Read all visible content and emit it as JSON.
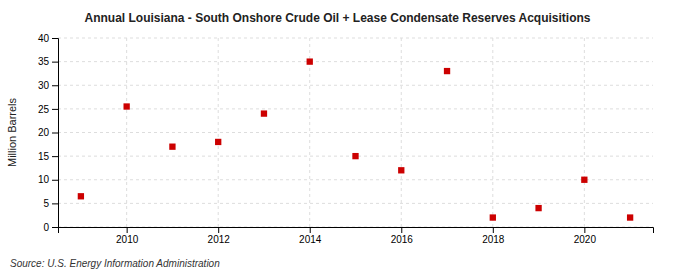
{
  "chart_data": {
    "type": "scatter",
    "title": "Annual Louisiana - South Onshore Crude Oil + Lease Condensate Reserves Acquisitions",
    "y_label": "Million Barrels",
    "source": "Source: U.S. Energy Information Administration",
    "x": [
      2009,
      2010,
      2011,
      2012,
      2013,
      2014,
      2015,
      2016,
      2017,
      2018,
      2019,
      2020,
      2021
    ],
    "values": [
      6.5,
      25.5,
      17.0,
      18.0,
      24.0,
      35.0,
      15.0,
      12.0,
      33.0,
      2.0,
      4.0,
      10.0,
      2.0
    ],
    "color": "#cc0000",
    "marker": "square",
    "xlim": [
      2008.5,
      2021.5
    ],
    "xticks": [
      2010,
      2012,
      2014,
      2016,
      2018,
      2020
    ],
    "ylim": [
      0,
      40
    ],
    "yticks": [
      0,
      5,
      10,
      15,
      20,
      25,
      30,
      35,
      40
    ],
    "grid": true
  }
}
